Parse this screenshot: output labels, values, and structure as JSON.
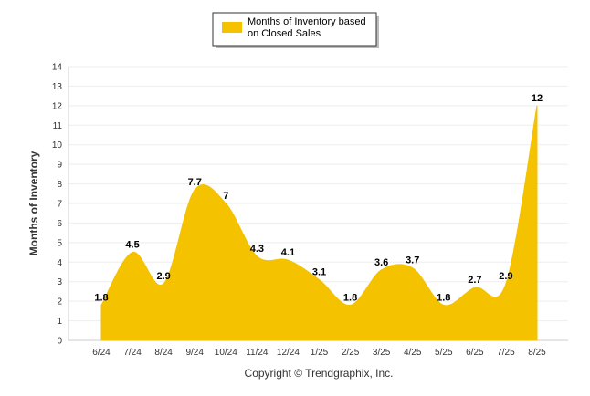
{
  "chart_data": {
    "type": "area",
    "categories": [
      "6/24",
      "7/24",
      "8/24",
      "9/24",
      "10/24",
      "11/24",
      "12/24",
      "1/25",
      "2/25",
      "3/25",
      "4/25",
      "5/25",
      "6/25",
      "7/25",
      "8/25"
    ],
    "series": [
      {
        "name": "Months of Inventory based on Closed Sales",
        "values": [
          1.8,
          4.5,
          2.9,
          7.7,
          7,
          4.3,
          4.1,
          3.1,
          1.8,
          3.6,
          3.7,
          1.8,
          2.7,
          2.9,
          12
        ],
        "color": "#F5C200"
      }
    ],
    "ylabel": "Months of Inventory",
    "xlabel": "",
    "ylim": [
      0,
      14
    ],
    "yticks": [
      0,
      1,
      2,
      3,
      4,
      5,
      6,
      7,
      8,
      9,
      10,
      11,
      12,
      13,
      14
    ],
    "legend": {
      "position": "top-center",
      "label_line1": "Months of Inventory based",
      "label_line2": "on Closed Sales"
    },
    "grid": true,
    "credits": "Copyright © Trendgraphix, Inc."
  }
}
